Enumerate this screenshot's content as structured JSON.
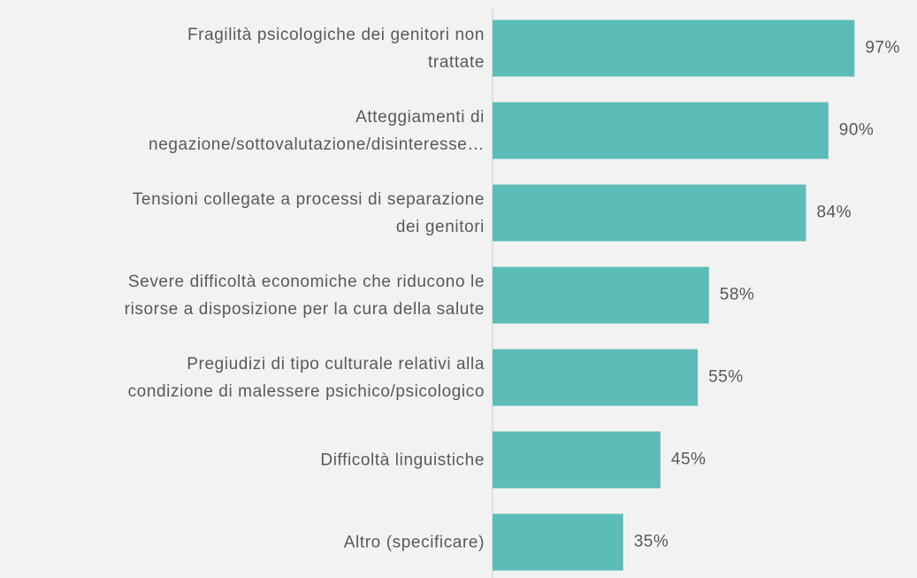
{
  "chart_data": {
    "type": "barh",
    "categories": [
      "Fragilità psicologiche dei genitori non\ntrattate",
      "Atteggiamenti di\nnegazione/sottovalutazione/disinteresse…",
      "Tensioni collegate a processi di separazione\ndei genitori",
      "Severe difficoltà economiche che riducono le\nrisorse a disposizione per la cura della salute",
      "Pregiudizi di tipo culturale relativi alla\ncondizione di malessere psichico/psicologico",
      "Difficoltà linguistiche",
      "Altro (specificare)"
    ],
    "values": [
      97,
      90,
      84,
      58,
      55,
      45,
      35
    ],
    "value_labels": [
      "97%",
      "90%",
      "84%",
      "58%",
      "55%",
      "45%",
      "35%"
    ],
    "color": "#5bbcb8",
    "xlim": [
      0,
      100
    ]
  }
}
